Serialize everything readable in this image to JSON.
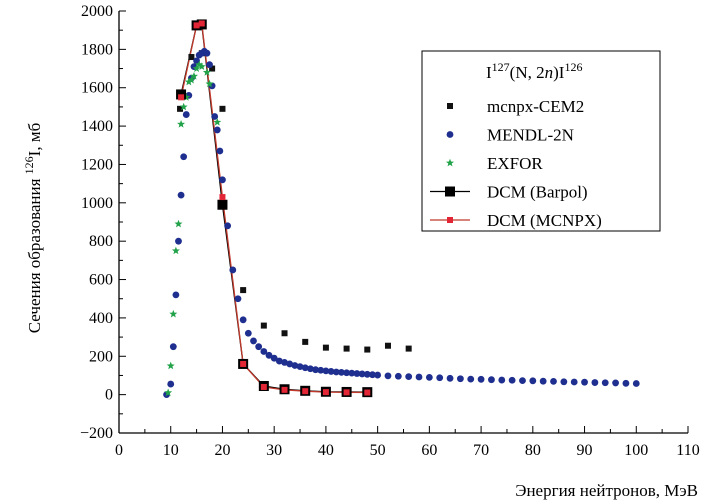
{
  "chart_data": {
    "type": "scatter",
    "title": "",
    "xlabel": "Энергия нейтронов, МэВ",
    "ylabel": {
      "prefix": "Сечения образования ",
      "sup": "126",
      "suffix": "I, мб"
    },
    "xlim": [
      0,
      110
    ],
    "ylim": [
      -200,
      2000
    ],
    "xticks": [
      0,
      10,
      20,
      30,
      40,
      50,
      60,
      70,
      80,
      90,
      100,
      110
    ],
    "yticks": [
      -200,
      0,
      200,
      400,
      600,
      800,
      1000,
      1200,
      1400,
      1600,
      1800,
      2000
    ],
    "ytick_labels": [
      "−200",
      "0",
      "200",
      "400",
      "600",
      "800",
      "1000",
      "1200",
      "1400",
      "1600",
      "1800",
      "2000"
    ],
    "grid": false,
    "legend": {
      "position": "top-right",
      "title": {
        "base1": "I",
        "sup1": "127",
        "mid": "(N, 2",
        "italic": "n",
        "close": ")I",
        "sup2": "126"
      }
    },
    "series": [
      {
        "name": "mcnpx-CEM2",
        "marker": "square-small",
        "color": "#111111",
        "line": false,
        "points": [
          [
            11.8,
            1490
          ],
          [
            12,
            1560
          ],
          [
            14,
            1760
          ],
          [
            16,
            1780
          ],
          [
            18,
            1700
          ],
          [
            20,
            1490
          ],
          [
            24,
            545
          ],
          [
            28,
            360
          ],
          [
            32,
            320
          ],
          [
            36,
            275
          ],
          [
            40,
            245
          ],
          [
            44,
            240
          ],
          [
            48,
            235
          ],
          [
            52,
            255
          ],
          [
            56,
            240
          ]
        ]
      },
      {
        "name": "MENDL-2N",
        "marker": "circle",
        "color": "#1f2f8f",
        "line": false,
        "points": [
          [
            9.2,
            0
          ],
          [
            10,
            55
          ],
          [
            10.5,
            250
          ],
          [
            11,
            520
          ],
          [
            11.5,
            800
          ],
          [
            12,
            1040
          ],
          [
            12.5,
            1240
          ],
          [
            13,
            1460
          ],
          [
            13.5,
            1560
          ],
          [
            14,
            1650
          ],
          [
            14.5,
            1710
          ],
          [
            15,
            1740
          ],
          [
            15.5,
            1770
          ],
          [
            16,
            1780
          ],
          [
            16.5,
            1790
          ],
          [
            17,
            1780
          ],
          [
            17.5,
            1720
          ],
          [
            18,
            1610
          ],
          [
            18.5,
            1450
          ],
          [
            19,
            1380
          ],
          [
            19.5,
            1270
          ],
          [
            20,
            1120
          ],
          [
            21,
            880
          ],
          [
            22,
            650
          ],
          [
            23,
            500
          ],
          [
            24,
            390
          ],
          [
            25,
            320
          ],
          [
            26,
            280
          ],
          [
            27,
            250
          ],
          [
            28,
            225
          ],
          [
            29,
            205
          ],
          [
            30,
            190
          ],
          [
            31,
            175
          ],
          [
            32,
            168
          ],
          [
            33,
            160
          ],
          [
            34,
            152
          ],
          [
            35,
            146
          ],
          [
            36,
            140
          ],
          [
            37,
            135
          ],
          [
            38,
            130
          ],
          [
            39,
            127
          ],
          [
            40,
            124
          ],
          [
            41,
            121
          ],
          [
            42,
            118
          ],
          [
            43,
            116
          ],
          [
            44,
            114
          ],
          [
            45,
            112
          ],
          [
            46,
            110
          ],
          [
            47,
            108
          ],
          [
            48,
            106
          ],
          [
            49,
            104
          ],
          [
            50,
            102
          ],
          [
            52,
            98
          ],
          [
            54,
            96
          ],
          [
            56,
            94
          ],
          [
            58,
            92
          ],
          [
            60,
            90
          ],
          [
            62,
            88
          ],
          [
            64,
            85
          ],
          [
            66,
            83
          ],
          [
            68,
            81
          ],
          [
            70,
            80
          ],
          [
            72,
            78
          ],
          [
            74,
            76
          ],
          [
            76,
            75
          ],
          [
            78,
            73
          ],
          [
            80,
            72
          ],
          [
            82,
            70
          ],
          [
            84,
            69
          ],
          [
            86,
            67
          ],
          [
            88,
            66
          ],
          [
            90,
            65
          ],
          [
            92,
            63
          ],
          [
            94,
            62
          ],
          [
            96,
            61
          ],
          [
            98,
            59
          ],
          [
            100,
            58
          ]
        ]
      },
      {
        "name": "EXFOR",
        "marker": "star",
        "color": "#22a34a",
        "line": false,
        "points": [
          [
            9.5,
            10
          ],
          [
            10,
            150
          ],
          [
            10.5,
            420
          ],
          [
            11,
            750
          ],
          [
            11.5,
            890
          ],
          [
            12,
            1410
          ],
          [
            12.5,
            1500
          ],
          [
            13,
            1550
          ],
          [
            13.5,
            1630
          ],
          [
            14,
            1640
          ],
          [
            14.5,
            1660
          ],
          [
            15,
            1700
          ],
          [
            15.5,
            1720
          ],
          [
            16,
            1710
          ],
          [
            17,
            1680
          ],
          [
            17.5,
            1620
          ],
          [
            19,
            1420
          ]
        ]
      },
      {
        "name": "DCM (Barpol)",
        "marker": "square-large",
        "color": "#000000",
        "line": true,
        "line_color": "#000000",
        "points": [
          [
            12,
            1565
          ],
          [
            15,
            1925
          ],
          [
            16,
            1930
          ],
          [
            20,
            990
          ],
          [
            24,
            160
          ],
          [
            28,
            45
          ],
          [
            32,
            28
          ],
          [
            36,
            20
          ],
          [
            40,
            15
          ],
          [
            44,
            14
          ],
          [
            48,
            13
          ]
        ]
      },
      {
        "name": "DCM (MCNPX)",
        "marker": "square-red",
        "color": "#e32636",
        "line": true,
        "line_color": "#c0392b",
        "points": [
          [
            12,
            1550
          ],
          [
            15,
            1925
          ],
          [
            16,
            1935
          ],
          [
            20,
            1030
          ],
          [
            24,
            160
          ],
          [
            28,
            40
          ],
          [
            32,
            25
          ],
          [
            36,
            18
          ],
          [
            40,
            13
          ],
          [
            44,
            12
          ],
          [
            48,
            11
          ]
        ]
      }
    ]
  }
}
